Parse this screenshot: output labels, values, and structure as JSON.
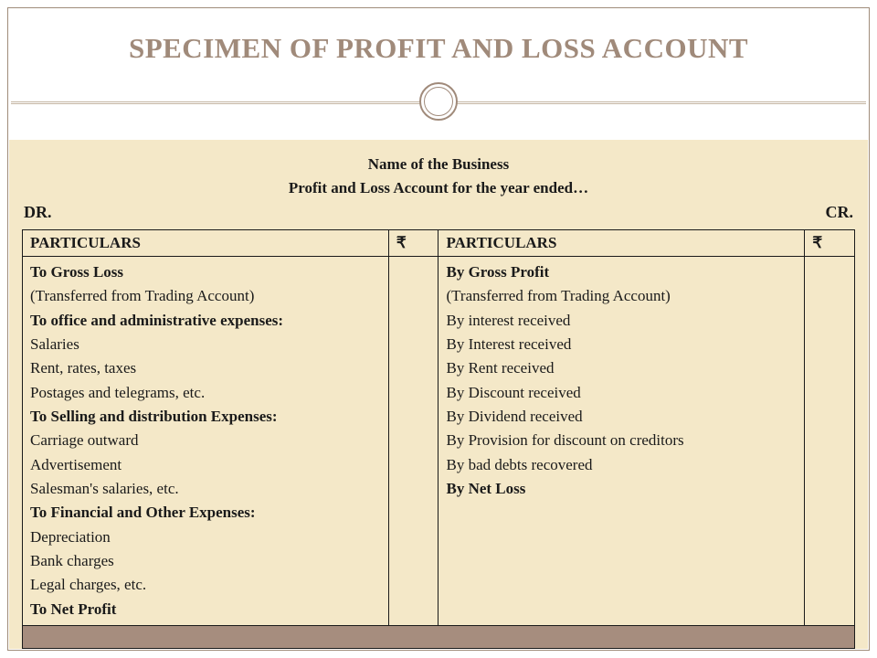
{
  "title": "SPECIMEN OF PROFIT AND LOSS ACCOUNT",
  "business_header": {
    "line1": "Name of the Business",
    "line2": "Profit and Loss Account for the year ended…"
  },
  "dr_label": "DR.",
  "cr_label": "CR.",
  "columns": {
    "left_header": "PARTICULARS",
    "left_amt": "₹",
    "right_header": "PARTICULARS",
    "right_amt": "₹"
  },
  "debit_lines": [
    {
      "text": "To Gross Loss",
      "bold": true
    },
    {
      "text": "(Transferred from Trading Account)",
      "bold": false
    },
    {
      "text": "To office and administrative expenses:",
      "bold": true
    },
    {
      "text": " Salaries",
      "bold": false
    },
    {
      "text": "Rent, rates, taxes",
      "bold": false
    },
    {
      "text": "Postages and telegrams, etc.",
      "bold": false
    },
    {
      "text": "To Selling and distribution Expenses:",
      "bold": true
    },
    {
      "text": "Carriage outward",
      "bold": false
    },
    {
      "text": "Advertisement",
      "bold": false
    },
    {
      "text": "Salesman's salaries, etc.",
      "bold": false
    },
    {
      "text": "To Financial and Other Expenses:",
      "bold": true
    },
    {
      "text": "Depreciation",
      "bold": false
    },
    {
      "text": "Bank charges",
      "bold": false
    },
    {
      "text": "Legal charges, etc.",
      "bold": false
    },
    {
      "text": "To Net Profit",
      "bold": true
    }
  ],
  "credit_lines": [
    {
      "text": "By Gross Profit",
      "bold": true
    },
    {
      "text": "(Transferred from Trading Account)",
      "bold": false
    },
    {
      "text": "By interest received",
      "bold": false
    },
    {
      "text": "By Interest received",
      "bold": false
    },
    {
      "text": "By Rent received",
      "bold": false
    },
    {
      "text": "By Discount received",
      "bold": false
    },
    {
      "text": "By Dividend received",
      "bold": false
    },
    {
      "text": "By Provision for discount on creditors",
      "bold": false
    },
    {
      "text": "By bad debts recovered",
      "bold": false
    },
    {
      "text": "By Net Loss",
      "bold": true
    }
  ],
  "colors": {
    "title_color": "#a08a7a",
    "content_bg": "#f4e8c8",
    "border": "#1a1a1a",
    "footer_band": "#a68d7e",
    "frame": "#a08c7a",
    "divider": "#c4b5a3"
  },
  "typography": {
    "title_fontsize": 31,
    "body_fontsize": 17,
    "header_fontsize": 18
  }
}
